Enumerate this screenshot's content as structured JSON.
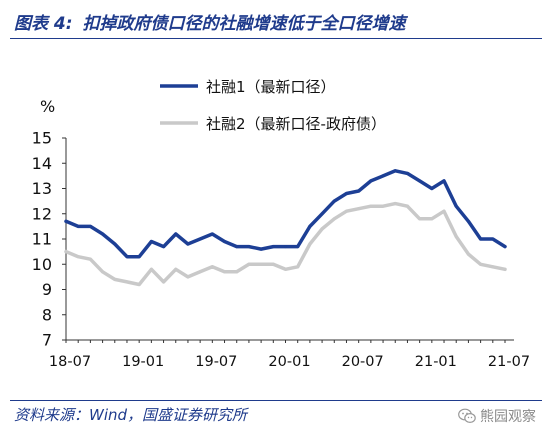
{
  "header": {
    "figure_label": "图表 4:"
  },
  "chart_data": {
    "type": "line",
    "title": "扣掉政府债口径的社融增速低于全口径增速",
    "ylabel": "%",
    "ylim": [
      7,
      15
    ],
    "yticks": [
      15,
      14,
      13,
      12,
      11,
      10,
      9,
      8,
      7
    ],
    "xticks": [
      "18-07",
      "19-01",
      "19-07",
      "20-01",
      "20-07",
      "21-01",
      "21-07"
    ],
    "x": [
      "18-07",
      "18-08",
      "18-09",
      "18-10",
      "18-11",
      "18-12",
      "19-01",
      "19-02",
      "19-03",
      "19-04",
      "19-05",
      "19-06",
      "19-07",
      "19-08",
      "19-09",
      "19-10",
      "19-11",
      "19-12",
      "20-01",
      "20-02",
      "20-03",
      "20-04",
      "20-05",
      "20-06",
      "20-07",
      "20-08",
      "20-09",
      "20-10",
      "20-11",
      "20-12",
      "21-01",
      "21-02",
      "21-03",
      "21-04",
      "21-05",
      "21-06",
      "21-07"
    ],
    "series": [
      {
        "name": "社融1（最新口径）",
        "color": "#1D3F95",
        "values": [
          11.7,
          11.5,
          11.5,
          11.2,
          10.8,
          10.3,
          10.3,
          10.9,
          10.7,
          11.2,
          10.8,
          11.0,
          11.2,
          10.9,
          10.7,
          10.7,
          10.6,
          10.7,
          10.7,
          10.7,
          11.5,
          12.0,
          12.5,
          12.8,
          12.9,
          13.3,
          13.5,
          13.7,
          13.6,
          13.3,
          13.0,
          13.3,
          12.3,
          11.7,
          11.0,
          11.0,
          10.7
        ]
      },
      {
        "name": "社融2（最新口径-政府债）",
        "color": "#C9C9C9",
        "values": [
          10.5,
          10.3,
          10.2,
          9.7,
          9.4,
          9.3,
          9.2,
          9.8,
          9.3,
          9.8,
          9.5,
          9.7,
          9.9,
          9.7,
          9.7,
          10.0,
          10.0,
          10.0,
          9.8,
          9.9,
          10.8,
          11.4,
          11.8,
          12.1,
          12.2,
          12.3,
          12.3,
          12.4,
          12.3,
          11.8,
          11.8,
          12.1,
          11.1,
          10.4,
          10.0,
          9.9,
          9.8
        ]
      }
    ],
    "legend_position": "top-center",
    "grid": false
  },
  "footer": {
    "source": "资料来源：Wind，国盛证券研究所",
    "watermark": "熊园观察"
  },
  "colors": {
    "accent": "#1F3B8C"
  }
}
